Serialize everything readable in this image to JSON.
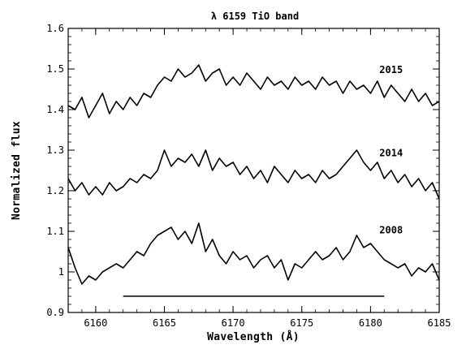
{
  "chart_data": {
    "type": "line",
    "title": "λ 6159 TiO band",
    "xlabel": "Wavelength (Å)",
    "ylabel": "Normalized flux",
    "xlim": [
      6158,
      6185
    ],
    "ylim": [
      0.9,
      1.6
    ],
    "grid": false,
    "x_ticks": [
      6160,
      6165,
      6170,
      6175,
      6180,
      6185
    ],
    "y_ticks": [
      0.9,
      1.0,
      1.1,
      1.2,
      1.3,
      1.4,
      1.5,
      1.6
    ],
    "x_tick_labels": [
      "6160",
      "6165",
      "6170",
      "6175",
      "6180",
      "6185"
    ],
    "y_tick_labels": [
      "0.9",
      "1",
      "1.1",
      "1.2",
      "1.3",
      "1.4",
      "1.5",
      "1.6"
    ],
    "series": [
      {
        "name": "2015",
        "x": [
          6158.0,
          6158.5,
          6159.0,
          6159.5,
          6160.0,
          6160.5,
          6161.0,
          6161.5,
          6162.0,
          6162.5,
          6163.0,
          6163.5,
          6164.0,
          6164.5,
          6165.0,
          6165.5,
          6166.0,
          6166.5,
          6167.0,
          6167.5,
          6168.0,
          6168.5,
          6169.0,
          6169.5,
          6170.0,
          6170.5,
          6171.0,
          6171.5,
          6172.0,
          6172.5,
          6173.0,
          6173.5,
          6174.0,
          6174.5,
          6175.0,
          6175.5,
          6176.0,
          6176.5,
          6177.0,
          6177.5,
          6178.0,
          6178.5,
          6179.0,
          6179.5,
          6180.0,
          6180.5,
          6181.0,
          6181.5,
          6182.0,
          6182.5,
          6183.0,
          6183.5,
          6184.0,
          6184.5,
          6185.0
        ],
        "y": [
          1.41,
          1.4,
          1.43,
          1.38,
          1.41,
          1.44,
          1.39,
          1.42,
          1.4,
          1.43,
          1.41,
          1.44,
          1.43,
          1.46,
          1.48,
          1.47,
          1.5,
          1.48,
          1.49,
          1.51,
          1.47,
          1.49,
          1.5,
          1.46,
          1.48,
          1.46,
          1.49,
          1.47,
          1.45,
          1.48,
          1.46,
          1.47,
          1.45,
          1.48,
          1.46,
          1.47,
          1.45,
          1.48,
          1.46,
          1.47,
          1.44,
          1.47,
          1.45,
          1.46,
          1.44,
          1.47,
          1.43,
          1.46,
          1.44,
          1.42,
          1.45,
          1.42,
          1.44,
          1.41,
          1.42
        ]
      },
      {
        "name": "2014",
        "x": [
          6158.0,
          6158.5,
          6159.0,
          6159.5,
          6160.0,
          6160.5,
          6161.0,
          6161.5,
          6162.0,
          6162.5,
          6163.0,
          6163.5,
          6164.0,
          6164.5,
          6165.0,
          6165.5,
          6166.0,
          6166.5,
          6167.0,
          6167.5,
          6168.0,
          6168.5,
          6169.0,
          6169.5,
          6170.0,
          6170.5,
          6171.0,
          6171.5,
          6172.0,
          6172.5,
          6173.0,
          6173.5,
          6174.0,
          6174.5,
          6175.0,
          6175.5,
          6176.0,
          6176.5,
          6177.0,
          6177.5,
          6178.0,
          6178.5,
          6179.0,
          6179.5,
          6180.0,
          6180.5,
          6181.0,
          6181.5,
          6182.0,
          6182.5,
          6183.0,
          6183.5,
          6184.0,
          6184.5,
          6185.0
        ],
        "y": [
          1.23,
          1.2,
          1.22,
          1.19,
          1.21,
          1.19,
          1.22,
          1.2,
          1.21,
          1.23,
          1.22,
          1.24,
          1.23,
          1.25,
          1.3,
          1.26,
          1.28,
          1.27,
          1.29,
          1.26,
          1.3,
          1.25,
          1.28,
          1.26,
          1.27,
          1.24,
          1.26,
          1.23,
          1.25,
          1.22,
          1.26,
          1.24,
          1.22,
          1.25,
          1.23,
          1.24,
          1.22,
          1.25,
          1.23,
          1.24,
          1.26,
          1.28,
          1.3,
          1.27,
          1.25,
          1.27,
          1.23,
          1.25,
          1.22,
          1.24,
          1.21,
          1.23,
          1.2,
          1.22,
          1.18
        ]
      },
      {
        "name": "2008",
        "x": [
          6158.0,
          6158.5,
          6159.0,
          6159.5,
          6160.0,
          6160.5,
          6161.0,
          6161.5,
          6162.0,
          6162.5,
          6163.0,
          6163.5,
          6164.0,
          6164.5,
          6165.0,
          6165.5,
          6166.0,
          6166.5,
          6167.0,
          6167.5,
          6168.0,
          6168.5,
          6169.0,
          6169.5,
          6170.0,
          6170.5,
          6171.0,
          6171.5,
          6172.0,
          6172.5,
          6173.0,
          6173.5,
          6174.0,
          6174.5,
          6175.0,
          6175.5,
          6176.0,
          6176.5,
          6177.0,
          6177.5,
          6178.0,
          6178.5,
          6179.0,
          6179.5,
          6180.0,
          6180.5,
          6181.0,
          6181.5,
          6182.0,
          6182.5,
          6183.0,
          6183.5,
          6184.0,
          6184.5,
          6185.0
        ],
        "y": [
          1.06,
          1.01,
          0.97,
          0.99,
          0.98,
          1.0,
          1.01,
          1.02,
          1.01,
          1.03,
          1.05,
          1.04,
          1.07,
          1.09,
          1.1,
          1.11,
          1.08,
          1.1,
          1.07,
          1.12,
          1.05,
          1.08,
          1.04,
          1.02,
          1.05,
          1.03,
          1.04,
          1.01,
          1.03,
          1.04,
          1.01,
          1.03,
          0.98,
          1.02,
          1.01,
          1.03,
          1.05,
          1.03,
          1.04,
          1.06,
          1.03,
          1.05,
          1.09,
          1.06,
          1.07,
          1.05,
          1.03,
          1.02,
          1.01,
          1.02,
          0.99,
          1.01,
          1.0,
          1.02,
          0.98
        ]
      }
    ],
    "annotations": [
      {
        "type": "hline",
        "y": 0.94,
        "x_start": 6162,
        "x_end": 6181
      }
    ],
    "line_color": "#000000"
  }
}
